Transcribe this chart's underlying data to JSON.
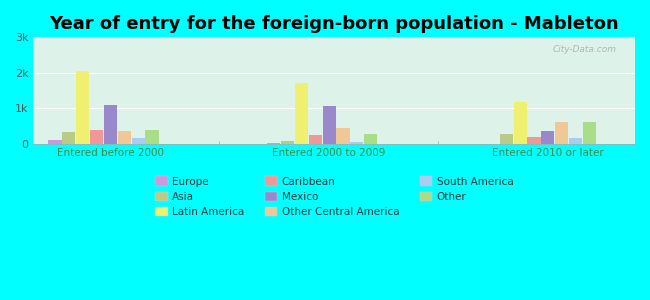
{
  "title": "Year of entry for the foreign-born population - Mableton",
  "groups": [
    "Entered before 2000",
    "Entered 2000 to 2009",
    "Entered 2010 or later"
  ],
  "bar_order": [
    "Europe",
    "Asia",
    "Latin America",
    "Caribbean",
    "Mexico",
    "Other Central America",
    "South America",
    "Other"
  ],
  "colors": {
    "Europe": "#cc99dd",
    "Asia": "#b8cc88",
    "Latin America": "#f0f070",
    "Caribbean": "#f09898",
    "Mexico": "#9988cc",
    "Other Central America": "#f0c898",
    "South America": "#aaccee",
    "Other": "#aadd88"
  },
  "values": {
    "Entered before 2000": {
      "Europe": 100,
      "Asia": 320,
      "Latin America": 2050,
      "Caribbean": 380,
      "Mexico": 1100,
      "Other Central America": 340,
      "South America": 150,
      "Other": 370
    },
    "Entered 2000 to 2009": {
      "Europe": 25,
      "Asia": 80,
      "Latin America": 1700,
      "Caribbean": 230,
      "Mexico": 1060,
      "Other Central America": 430,
      "South America": 45,
      "Other": 280
    },
    "Entered 2010 or later": {
      "Europe": 0,
      "Asia": 260,
      "Latin America": 1170,
      "Caribbean": 190,
      "Mexico": 340,
      "Other Central America": 600,
      "South America": 170,
      "Other": 620
    }
  },
  "ylim": [
    0,
    3000
  ],
  "yticks": [
    0,
    1000,
    2000,
    3000
  ],
  "ytick_labels": [
    "0",
    "1k",
    "2k",
    "3k"
  ],
  "background_color": "#00ffff",
  "plot_bg_color": "#ddf2e8",
  "title_fontsize": 13,
  "watermark": "City-Data.com",
  "legend_col1": [
    "Europe",
    "Caribbean",
    "South America"
  ],
  "legend_col2": [
    "Asia",
    "Mexico",
    "Other"
  ],
  "legend_col3": [
    "Latin America",
    "Other Central America"
  ]
}
